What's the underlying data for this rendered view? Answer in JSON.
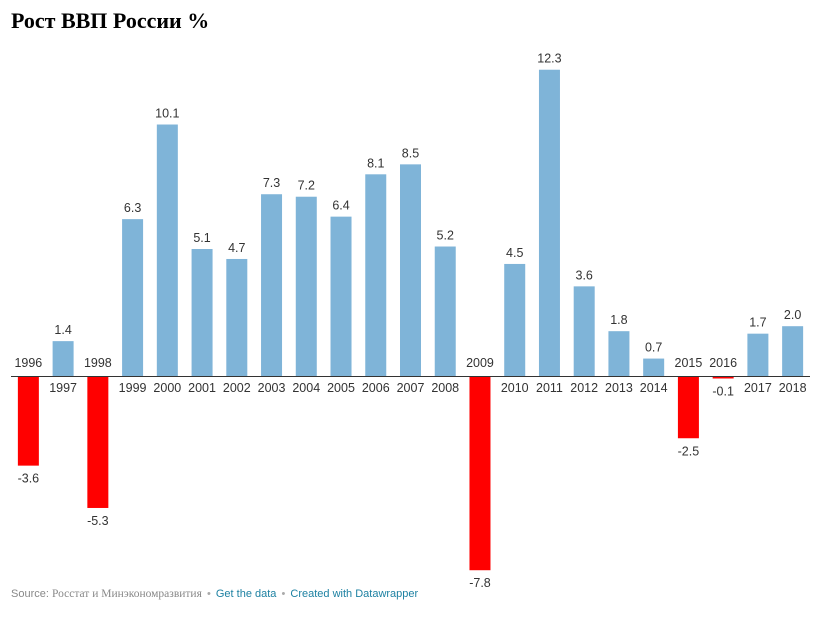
{
  "title": "Рост ВВП России %",
  "footer": {
    "source_label": "Source:",
    "source_text": "Росстат и Минэкономразвития",
    "separator": "•",
    "get_data": "Get the data",
    "created_with": "Created with Datawrapper"
  },
  "chart_data": {
    "type": "bar",
    "title": "Рост ВВП России %",
    "xlabel": "",
    "ylabel": "",
    "ylim": [
      -7.8,
      12.3
    ],
    "grid": false,
    "categories": [
      "1996",
      "1997",
      "1998",
      "1999",
      "2000",
      "2001",
      "2002",
      "2003",
      "2004",
      "2005",
      "2006",
      "2007",
      "2008",
      "2009",
      "2010",
      "2011",
      "2012",
      "2013",
      "2014",
      "2015",
      "2016",
      "2017",
      "2018"
    ],
    "values": [
      -3.6,
      1.4,
      -5.3,
      6.3,
      10.1,
      5.1,
      4.7,
      7.3,
      7.2,
      6.4,
      8.1,
      8.5,
      5.2,
      -7.8,
      4.5,
      12.3,
      3.6,
      1.8,
      0.7,
      -2.5,
      -0.1,
      1.7,
      2.0
    ],
    "value_labels": [
      "-3.6",
      "1.4",
      "-5.3",
      "6.3",
      "10.1",
      "5.1",
      "4.7",
      "7.3",
      "7.2",
      "6.4",
      "8.1",
      "8.5",
      "5.2",
      "-7.8",
      "4.5",
      "12.3",
      "3.6",
      "1.8",
      "0.7",
      "-2.5",
      "-0.1",
      "1.7",
      "2.0"
    ],
    "colors": {
      "positive": "#7fb4d8",
      "negative": "#ff0000",
      "baseline": "#333333"
    }
  }
}
